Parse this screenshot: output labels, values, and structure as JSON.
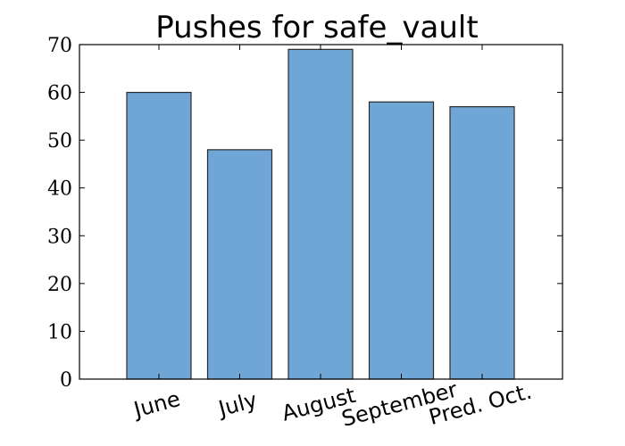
{
  "chart_data": {
    "type": "bar",
    "title": "Pushes for safe_vault",
    "xlabel": "",
    "ylabel": "",
    "categories": [
      "June",
      "July",
      "August",
      "September",
      "Pred. Oct."
    ],
    "values": [
      60,
      48,
      69,
      58,
      57
    ],
    "ylim": [
      0,
      70
    ],
    "yticks": [
      "0",
      "10",
      "20",
      "30",
      "40",
      "50",
      "60",
      "70"
    ],
    "grid": false,
    "bar_color": "#6fa6d6",
    "edge_color": "#2b2b2b"
  }
}
